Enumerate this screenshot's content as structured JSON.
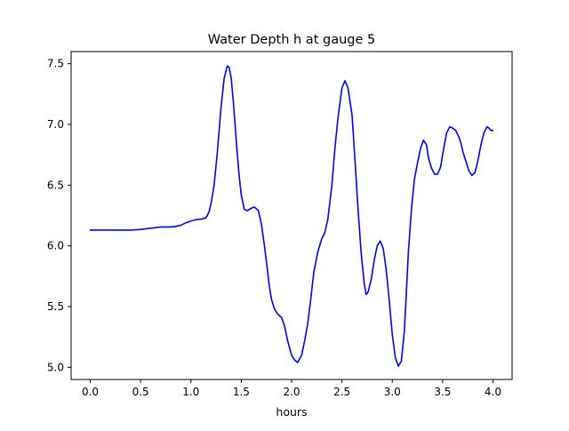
{
  "chart_data": {
    "type": "line",
    "title": "Water Depth h at gauge 5",
    "xlabel": "hours",
    "ylabel": "",
    "xlim": [
      -0.19,
      4.19
    ],
    "ylim": [
      4.9,
      7.6
    ],
    "xticks": [
      0.0,
      0.5,
      1.0,
      1.5,
      2.0,
      2.5,
      3.0,
      3.5,
      4.0
    ],
    "xtick_labels": [
      "0.0",
      "0.5",
      "1.0",
      "1.5",
      "2.0",
      "2.5",
      "3.0",
      "3.5",
      "4.0"
    ],
    "yticks": [
      5.0,
      5.5,
      6.0,
      6.5,
      7.0,
      7.5
    ],
    "ytick_labels": [
      "5.0",
      "5.5",
      "6.0",
      "6.5",
      "7.0",
      "7.5"
    ],
    "grid": false,
    "legend": "none",
    "series": [
      {
        "color": "#0000ff",
        "x": [
          0.0,
          0.2,
          0.4,
          0.5,
          0.6,
          0.7,
          0.8,
          0.85,
          0.9,
          0.95,
          1.0,
          1.05,
          1.1,
          1.15,
          1.18,
          1.2,
          1.23,
          1.26,
          1.3,
          1.33,
          1.36,
          1.38,
          1.4,
          1.42,
          1.44,
          1.46,
          1.48,
          1.5,
          1.53,
          1.56,
          1.6,
          1.63,
          1.67,
          1.7,
          1.73,
          1.76,
          1.78,
          1.8,
          1.83,
          1.86,
          1.9,
          1.93,
          1.96,
          2.0,
          2.03,
          2.06,
          2.1,
          2.13,
          2.16,
          2.19,
          2.22,
          2.26,
          2.3,
          2.33,
          2.36,
          2.4,
          2.43,
          2.46,
          2.5,
          2.53,
          2.56,
          2.6,
          2.63,
          2.66,
          2.69,
          2.72,
          2.74,
          2.76,
          2.79,
          2.82,
          2.85,
          2.88,
          2.91,
          2.94,
          2.97,
          3.0,
          3.03,
          3.06,
          3.09,
          3.12,
          3.14,
          3.16,
          3.19,
          3.22,
          3.25,
          3.28,
          3.31,
          3.34,
          3.36,
          3.39,
          3.42,
          3.45,
          3.48,
          3.51,
          3.54,
          3.57,
          3.6,
          3.63,
          3.66,
          3.68,
          3.7,
          3.73,
          3.76,
          3.79,
          3.82,
          3.85,
          3.88,
          3.91,
          3.94,
          3.96,
          3.98,
          4.0
        ],
        "y": [
          6.13,
          6.13,
          6.13,
          6.135,
          6.145,
          6.155,
          6.155,
          6.16,
          6.17,
          6.19,
          6.205,
          6.215,
          6.22,
          6.23,
          6.28,
          6.35,
          6.5,
          6.75,
          7.15,
          7.38,
          7.48,
          7.47,
          7.38,
          7.2,
          6.98,
          6.76,
          6.57,
          6.42,
          6.3,
          6.29,
          6.31,
          6.32,
          6.29,
          6.18,
          6.0,
          5.8,
          5.66,
          5.56,
          5.48,
          5.44,
          5.41,
          5.34,
          5.22,
          5.1,
          5.06,
          5.04,
          5.1,
          5.22,
          5.36,
          5.56,
          5.78,
          5.95,
          6.06,
          6.11,
          6.22,
          6.5,
          6.8,
          7.05,
          7.3,
          7.36,
          7.3,
          7.08,
          6.7,
          6.3,
          5.95,
          5.7,
          5.6,
          5.62,
          5.72,
          5.88,
          6.0,
          6.04,
          5.98,
          5.8,
          5.55,
          5.27,
          5.08,
          5.01,
          5.05,
          5.3,
          5.62,
          5.95,
          6.3,
          6.55,
          6.68,
          6.8,
          6.87,
          6.83,
          6.72,
          6.64,
          6.59,
          6.59,
          6.65,
          6.8,
          6.93,
          6.98,
          6.97,
          6.95,
          6.9,
          6.85,
          6.78,
          6.7,
          6.62,
          6.58,
          6.6,
          6.7,
          6.83,
          6.93,
          6.98,
          6.97,
          6.95,
          6.95
        ]
      }
    ]
  }
}
